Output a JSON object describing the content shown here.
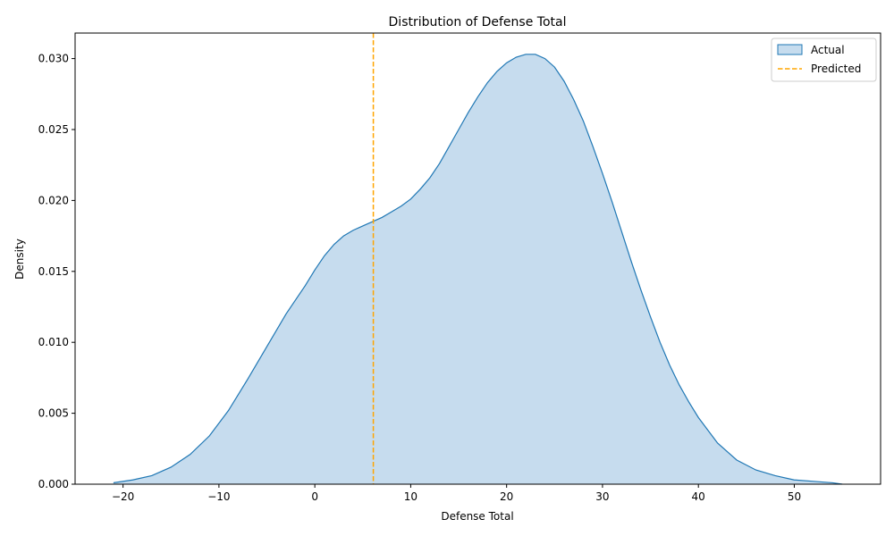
{
  "chart_data": {
    "type": "area",
    "title": "Distribution of Defense Total",
    "xlabel": "Defense Total",
    "ylabel": "Density",
    "xlim": [
      -25,
      59
    ],
    "ylim": [
      0,
      0.0318
    ],
    "x_ticks": [
      -20,
      -10,
      0,
      10,
      20,
      30,
      40,
      50
    ],
    "x_tick_labels": [
      "−20",
      "−10",
      "0",
      "10",
      "20",
      "30",
      "40",
      "50"
    ],
    "y_ticks": [
      0,
      0.005,
      0.01,
      0.015,
      0.02,
      0.025,
      0.03
    ],
    "y_tick_labels": [
      "0.000",
      "0.005",
      "0.010",
      "0.015",
      "0.020",
      "0.025",
      "0.030"
    ],
    "grid": false,
    "legend_position": "top-right",
    "series": [
      {
        "name": "Actual",
        "kind": "kde-fill",
        "color": "#1f77b4",
        "fill": "#c6dcee",
        "x": [
          -21,
          -19,
          -17,
          -15,
          -13,
          -11,
          -9,
          -7,
          -5,
          -3,
          -1,
          0,
          1,
          2,
          3,
          4,
          5,
          6,
          7,
          8,
          9,
          10,
          11,
          12,
          13,
          14,
          15,
          16,
          17,
          18,
          19,
          20,
          21,
          22,
          23,
          24,
          25,
          26,
          27,
          28,
          29,
          30,
          31,
          32,
          33,
          34,
          35,
          36,
          37,
          38,
          39,
          40,
          42,
          44,
          46,
          48,
          50,
          52,
          54,
          55
        ],
        "y": [
          0.0001,
          0.0003,
          0.0006,
          0.0012,
          0.0021,
          0.0034,
          0.0052,
          0.0074,
          0.0097,
          0.012,
          0.014,
          0.0151,
          0.0161,
          0.0169,
          0.0175,
          0.0179,
          0.0182,
          0.0185,
          0.0188,
          0.0192,
          0.0196,
          0.0201,
          0.0208,
          0.0216,
          0.0226,
          0.0238,
          0.025,
          0.0262,
          0.0273,
          0.0283,
          0.0291,
          0.0297,
          0.0301,
          0.0303,
          0.0303,
          0.03,
          0.0294,
          0.0284,
          0.0271,
          0.0256,
          0.0238,
          0.0219,
          0.0199,
          0.0178,
          0.0157,
          0.0137,
          0.0118,
          0.01,
          0.0084,
          0.007,
          0.0058,
          0.0047,
          0.0029,
          0.0017,
          0.001,
          0.0006,
          0.0003,
          0.0002,
          0.0001,
          0.0
        ]
      },
      {
        "name": "Predicted",
        "kind": "vline",
        "color": "#ffa500",
        "x": 6.1
      }
    ]
  }
}
